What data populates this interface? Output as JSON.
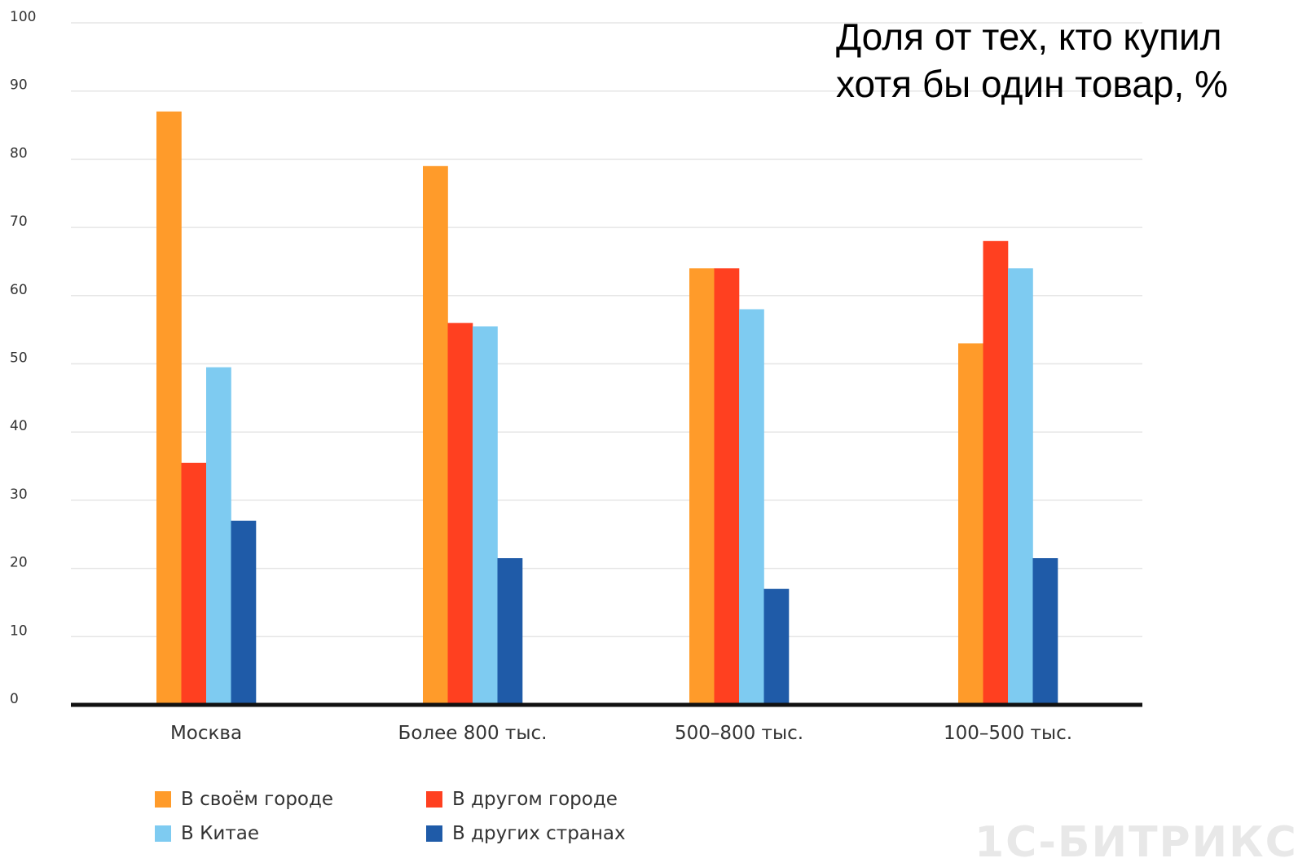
{
  "chart_data": {
    "type": "bar",
    "title": [
      "Доля от тех, кто купил",
      "хотя бы один товар, %"
    ],
    "categories": [
      "Москва",
      "Более 800 тыс.",
      "500–800 тыс.",
      "100–500 тыс."
    ],
    "series": [
      {
        "name": "В своём городе",
        "color": "#ff9b2a",
        "values": [
          87,
          79,
          64,
          53
        ]
      },
      {
        "name": "В другом городе",
        "color": "#ff4020",
        "values": [
          35.5,
          56,
          64,
          68
        ]
      },
      {
        "name": "В Китае",
        "color": "#7ecbf1",
        "values": [
          49.5,
          55.5,
          58,
          64
        ]
      },
      {
        "name": "В других странах",
        "color": "#1f5ba8",
        "values": [
          27,
          21.5,
          17,
          21.5
        ]
      }
    ],
    "y_ticks": [
      "0",
      "10",
      "20",
      "30",
      "40",
      "50",
      "60",
      "70",
      "80",
      "90",
      "100"
    ],
    "ylim": [
      0,
      100
    ],
    "grid": true,
    "legend_position": "bottom-left"
  },
  "watermark": "1С-БИТРИКС"
}
